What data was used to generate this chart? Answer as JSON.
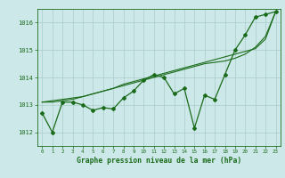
{
  "title": "Graphe pression niveau de la mer (hPa)",
  "background_color": "#cce8e8",
  "grid_color": "#aacccc",
  "line_color": "#1a6b1a",
  "xlim": [
    -0.5,
    23.5
  ],
  "ylim": [
    1011.5,
    1016.5
  ],
  "yticks": [
    1012,
    1013,
    1014,
    1015,
    1016
  ],
  "xticks": [
    0,
    1,
    2,
    3,
    4,
    5,
    6,
    7,
    8,
    9,
    10,
    11,
    12,
    13,
    14,
    15,
    16,
    17,
    18,
    19,
    20,
    21,
    22,
    23
  ],
  "series": [
    [
      1012.7,
      1012.0,
      1013.1,
      1013.1,
      1013.0,
      1012.8,
      1012.9,
      1012.85,
      1013.25,
      1013.5,
      1013.9,
      1014.1,
      1014.0,
      1013.4,
      1013.6,
      1012.15,
      1013.35,
      1013.2,
      1014.1,
      1015.0,
      1015.55,
      1016.2,
      1016.3,
      1016.4
    ],
    [
      1013.1,
      1013.15,
      1013.2,
      1013.25,
      1013.3,
      1013.4,
      1013.5,
      1013.6,
      1013.7,
      1013.8,
      1013.9,
      1014.0,
      1014.1,
      1014.2,
      1014.3,
      1014.4,
      1014.5,
      1014.55,
      1014.6,
      1014.7,
      1014.85,
      1015.1,
      1015.5,
      1016.4
    ],
    [
      1013.1,
      1013.1,
      1013.15,
      1013.2,
      1013.3,
      1013.4,
      1013.5,
      1013.6,
      1013.75,
      1013.85,
      1013.95,
      1014.05,
      1014.15,
      1014.25,
      1014.35,
      1014.45,
      1014.55,
      1014.65,
      1014.75,
      1014.85,
      1014.95,
      1015.05,
      1015.4,
      1016.4
    ]
  ]
}
